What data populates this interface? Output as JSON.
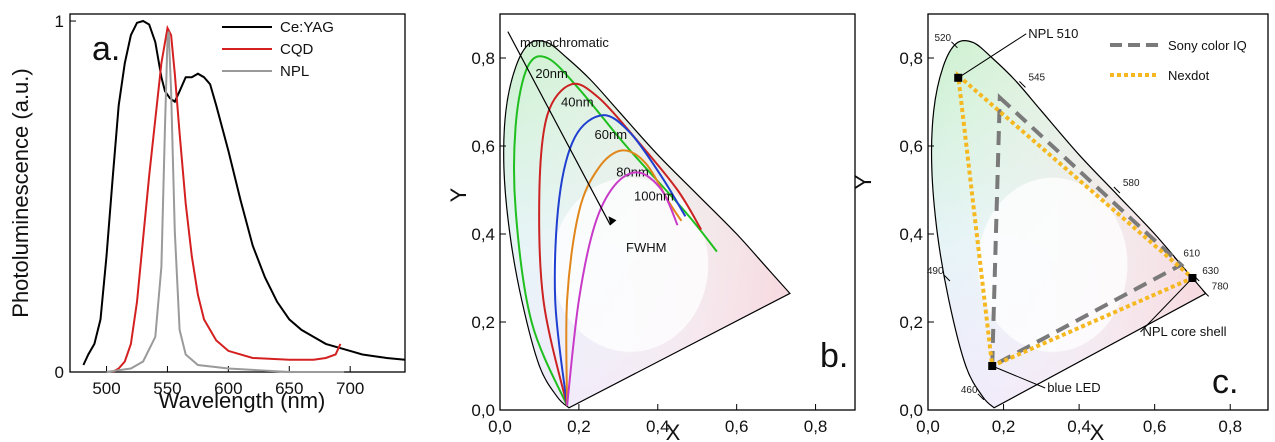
{
  "chart_data": [
    {
      "panel": "a.",
      "type": "line",
      "xlabel": "Wavelength (nm)",
      "ylabel": "Photoluminescence (a.u.)",
      "xlim": [
        470,
        745
      ],
      "ylim": [
        0,
        1.02
      ],
      "xticks": [
        500,
        550,
        600,
        650,
        700
      ],
      "xtick_labels": [
        "500",
        "550",
        "600",
        "650",
        "700"
      ],
      "yticks": [
        0,
        1
      ],
      "ytick_labels": [
        "0",
        "1"
      ],
      "legend_position": "top-right",
      "series": [
        {
          "name": "Ce:YAG",
          "color": "#000000",
          "points": [
            [
              481,
              0.02
            ],
            [
              485,
              0.05
            ],
            [
              490,
              0.08
            ],
            [
              495,
              0.15
            ],
            [
              500,
              0.33
            ],
            [
              505,
              0.55
            ],
            [
              510,
              0.76
            ],
            [
              515,
              0.88
            ],
            [
              520,
              0.96
            ],
            [
              525,
              0.995
            ],
            [
              530,
              1.0
            ],
            [
              535,
              0.99
            ],
            [
              540,
              0.94
            ],
            [
              545,
              0.84
            ],
            [
              548,
              0.8
            ],
            [
              552,
              0.78
            ],
            [
              556,
              0.77
            ],
            [
              560,
              0.8
            ],
            [
              565,
              0.84
            ],
            [
              570,
              0.84
            ],
            [
              575,
              0.85
            ],
            [
              580,
              0.84
            ],
            [
              585,
              0.82
            ],
            [
              590,
              0.76
            ],
            [
              600,
              0.63
            ],
            [
              610,
              0.49
            ],
            [
              620,
              0.36
            ],
            [
              630,
              0.27
            ],
            [
              640,
              0.2
            ],
            [
              650,
              0.15
            ],
            [
              660,
              0.12
            ],
            [
              670,
              0.1
            ],
            [
              680,
              0.08
            ],
            [
              690,
              0.07
            ],
            [
              700,
              0.06
            ],
            [
              710,
              0.05
            ],
            [
              720,
              0.045
            ],
            [
              730,
              0.04
            ],
            [
              745,
              0.035
            ]
          ]
        },
        {
          "name": "CQD",
          "color": "#d42020",
          "points": [
            [
              505,
              0.0
            ],
            [
              510,
              0.01
            ],
            [
              515,
              0.03
            ],
            [
              520,
              0.08
            ],
            [
              525,
              0.2
            ],
            [
              530,
              0.38
            ],
            [
              535,
              0.56
            ],
            [
              540,
              0.72
            ],
            [
              545,
              0.88
            ],
            [
              550,
              0.98
            ],
            [
              553,
              0.96
            ],
            [
              556,
              0.85
            ],
            [
              560,
              0.68
            ],
            [
              565,
              0.48
            ],
            [
              570,
              0.33
            ],
            [
              575,
              0.22
            ],
            [
              580,
              0.15
            ],
            [
              590,
              0.09
            ],
            [
              600,
              0.06
            ],
            [
              620,
              0.04
            ],
            [
              650,
              0.035
            ],
            [
              670,
              0.035
            ],
            [
              680,
              0.04
            ],
            [
              688,
              0.05
            ],
            [
              692,
              0.08
            ]
          ]
        },
        {
          "name": "NPL",
          "color": "#9a9a9a",
          "points": [
            [
              500,
              0.0
            ],
            [
              520,
              0.01
            ],
            [
              530,
              0.03
            ],
            [
              540,
              0.1
            ],
            [
              545,
              0.3
            ],
            [
              548,
              0.7
            ],
            [
              550,
              0.95
            ],
            [
              551,
              0.97
            ],
            [
              553,
              0.8
            ],
            [
              556,
              0.4
            ],
            [
              560,
              0.12
            ],
            [
              565,
              0.05
            ],
            [
              575,
              0.02
            ],
            [
              600,
              0.01
            ],
            [
              650,
              0.0
            ],
            [
              695,
              0.0
            ]
          ]
        }
      ]
    },
    {
      "panel": "b.",
      "type": "line",
      "xlabel": "X",
      "ylabel": "Y",
      "xlim": [
        0,
        0.9
      ],
      "ylim": [
        0,
        0.9
      ],
      "xticks": [
        0,
        0.2,
        0.4,
        0.6,
        0.8
      ],
      "xtick_labels": [
        "0,0",
        "0,2",
        "0,4",
        "0,6",
        "0,8"
      ],
      "yticks": [
        0,
        0.2,
        0.4,
        0.6,
        0.8
      ],
      "ytick_labels": [
        "0,0",
        "0,2",
        "0,4",
        "0,6",
        "0,8"
      ],
      "annotations": [
        "monochromatic",
        "FWHM"
      ],
      "series": [
        {
          "name": "20nm",
          "color": "#1fbf1f",
          "points": [
            [
              0.17,
              0.01
            ],
            [
              0.08,
              0.2
            ],
            [
              0.04,
              0.45
            ],
            [
              0.04,
              0.65
            ],
            [
              0.07,
              0.78
            ],
            [
              0.12,
              0.8
            ],
            [
              0.2,
              0.73
            ],
            [
              0.32,
              0.6
            ],
            [
              0.47,
              0.45
            ],
            [
              0.55,
              0.36
            ]
          ]
        },
        {
          "name": "40nm",
          "color": "#cc2222",
          "points": [
            [
              0.17,
              0.01
            ],
            [
              0.11,
              0.25
            ],
            [
              0.1,
              0.5
            ],
            [
              0.12,
              0.67
            ],
            [
              0.18,
              0.74
            ],
            [
              0.25,
              0.71
            ],
            [
              0.35,
              0.61
            ],
            [
              0.45,
              0.5
            ],
            [
              0.51,
              0.41
            ]
          ]
        },
        {
          "name": "60nm",
          "color": "#1f3fd0",
          "points": [
            [
              0.17,
              0.01
            ],
            [
              0.14,
              0.25
            ],
            [
              0.15,
              0.48
            ],
            [
              0.19,
              0.62
            ],
            [
              0.26,
              0.67
            ],
            [
              0.33,
              0.63
            ],
            [
              0.41,
              0.53
            ],
            [
              0.47,
              0.44
            ]
          ]
        },
        {
          "name": "80nm",
          "color": "#e0861a",
          "points": [
            [
              0.17,
              0.01
            ],
            [
              0.17,
              0.25
            ],
            [
              0.2,
              0.45
            ],
            [
              0.25,
              0.55
            ],
            [
              0.31,
              0.59
            ],
            [
              0.37,
              0.56
            ],
            [
              0.43,
              0.47
            ],
            [
              0.46,
              0.43
            ]
          ]
        },
        {
          "name": "100nm",
          "color": "#c83ac8",
          "points": [
            [
              0.17,
              0.01
            ],
            [
              0.2,
              0.25
            ],
            [
              0.24,
              0.42
            ],
            [
              0.29,
              0.51
            ],
            [
              0.35,
              0.54
            ],
            [
              0.41,
              0.5
            ],
            [
              0.45,
              0.42
            ]
          ]
        }
      ]
    },
    {
      "panel": "c.",
      "type": "scatter",
      "xlabel": "X",
      "ylabel": "Y",
      "xlim": [
        0,
        0.9
      ],
      "ylim": [
        0,
        0.9
      ],
      "xticks": [
        0,
        0.2,
        0.4,
        0.6,
        0.8
      ],
      "xtick_labels": [
        "0,0",
        "0,2",
        "0,4",
        "0,6",
        "0,8"
      ],
      "yticks": [
        0,
        0.2,
        0.4,
        0.6,
        0.8
      ],
      "ytick_labels": [
        "0,0",
        "0,2",
        "0,4",
        "0,6",
        "0,8"
      ],
      "legend_position": "top-right",
      "locus_wavelength_labels": [
        {
          "nm": "460",
          "x": 0.14,
          "y": 0.03
        },
        {
          "nm": "490",
          "x": 0.05,
          "y": 0.3
        },
        {
          "nm": "520",
          "x": 0.07,
          "y": 0.83
        },
        {
          "nm": "545",
          "x": 0.25,
          "y": 0.74
        },
        {
          "nm": "580",
          "x": 0.5,
          "y": 0.5
        },
        {
          "nm": "610",
          "x": 0.66,
          "y": 0.34
        },
        {
          "nm": "630",
          "x": 0.71,
          "y": 0.3
        },
        {
          "nm": "780",
          "x": 0.735,
          "y": 0.265
        }
      ],
      "gamuts": [
        {
          "name": "Sony color IQ",
          "color": "#7a7a7a",
          "style": "dashed",
          "points": [
            [
              0.19,
              0.71
            ],
            [
              0.67,
              0.33
            ],
            [
              0.17,
              0.1
            ]
          ]
        },
        {
          "name": "Nexdot",
          "color": "#f5b820",
          "style": "dotted",
          "points": [
            [
              0.08,
              0.76
            ],
            [
              0.7,
              0.3
            ],
            [
              0.17,
              0.1
            ]
          ]
        }
      ],
      "points": [
        {
          "label": "NPL 510",
          "x": 0.08,
          "y": 0.755
        },
        {
          "label": "NPL core shell",
          "x": 0.7,
          "y": 0.3
        },
        {
          "label": "blue LED",
          "x": 0.17,
          "y": 0.1
        }
      ]
    }
  ]
}
